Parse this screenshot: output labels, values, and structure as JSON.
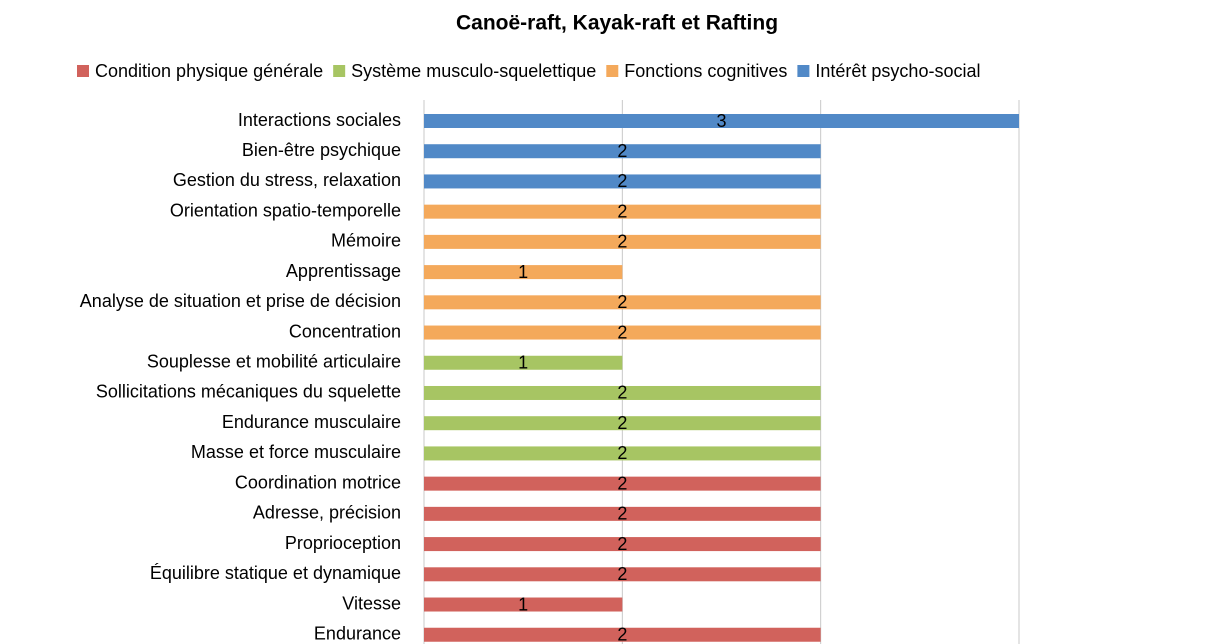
{
  "chart_data": {
    "type": "barh",
    "title": "Canoë-raft, Kayak-raft et Rafting",
    "categories": [
      "Interactions sociales",
      "Bien-être psychique",
      "Gestion du stress, relaxation",
      "Orientation spatio-temporelle",
      "Mémoire",
      "Apprentissage",
      "Analyse de situation et prise de décision",
      "Concentration",
      "Souplesse et mobilité articulaire",
      "Sollicitations mécaniques du squelette",
      "Endurance musculaire",
      "Masse et force musculaire",
      "Coordination motrice",
      "Adresse, précision",
      "Proprioception",
      "Équilibre statique et dynamique",
      "Vitesse",
      "Endurance"
    ],
    "series": [
      {
        "name": "Condition physique générale",
        "color": "#d1625c",
        "values": [
          null,
          null,
          null,
          null,
          null,
          null,
          null,
          null,
          null,
          null,
          null,
          null,
          2,
          2,
          2,
          2,
          1,
          2
        ]
      },
      {
        "name": "Système musculo-squelettique",
        "color": "#a7c563",
        "values": [
          null,
          null,
          null,
          null,
          null,
          null,
          null,
          null,
          1,
          2,
          2,
          2,
          null,
          null,
          null,
          null,
          null,
          null
        ]
      },
      {
        "name": "Fonctions cognitives",
        "color": "#f4a95b",
        "values": [
          null,
          null,
          null,
          2,
          2,
          1,
          2,
          2,
          null,
          null,
          null,
          null,
          null,
          null,
          null,
          null,
          null,
          null
        ]
      },
      {
        "name": "Intérêt psycho-social",
        "color": "#5189c7",
        "values": [
          3,
          2,
          2,
          null,
          null,
          null,
          null,
          null,
          null,
          null,
          null,
          null,
          null,
          null,
          null,
          null,
          null,
          null
        ]
      }
    ],
    "xlim": [
      0,
      3
    ],
    "xticks": [
      0,
      1,
      2,
      3
    ],
    "grid": true
  }
}
